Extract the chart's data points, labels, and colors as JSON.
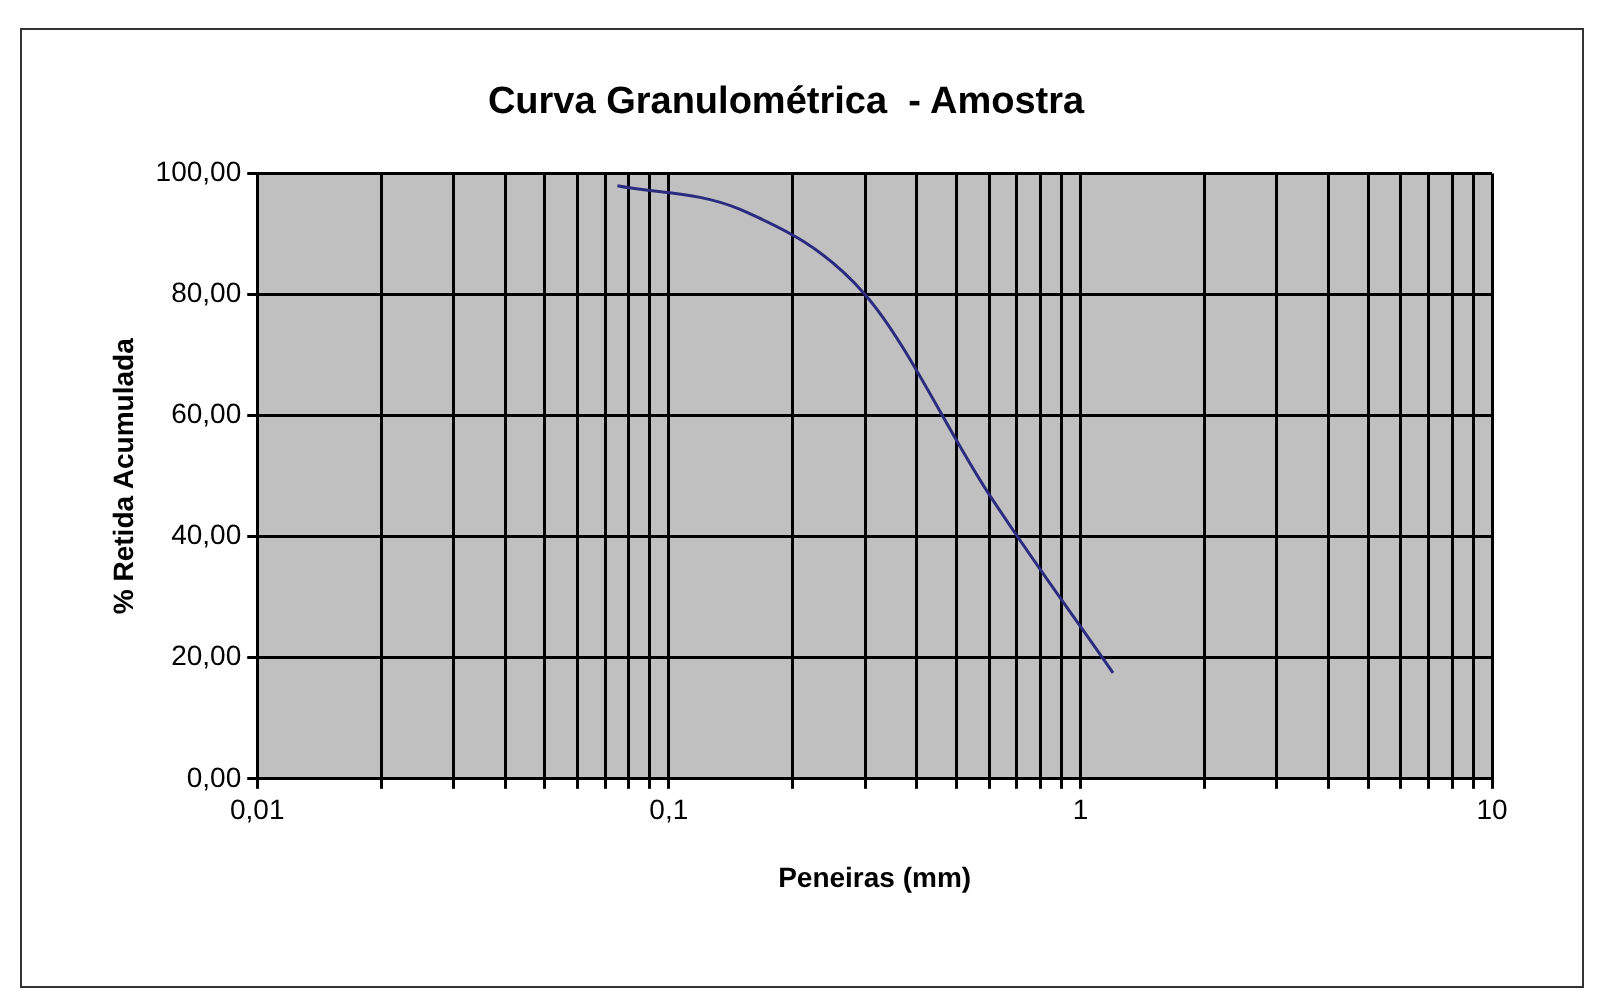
{
  "chart_data": {
    "type": "line",
    "title": "Curva Granulométrica  - Amostra",
    "xlabel": "Peneiras (mm)",
    "ylabel": "% Retida Acumulada",
    "log": "x",
    "grid": true,
    "legend": false,
    "marker": "none",
    "line_style": "solid",
    "x": [
      0.075,
      0.15,
      0.3,
      0.6,
      1.2
    ],
    "series": [
      {
        "color": "#2b2b80",
        "values": [
          98,
          94,
          80,
          47,
          17.5
        ]
      }
    ],
    "xlim": [
      0.01,
      10
    ],
    "xticks": [
      {
        "value": 0.01,
        "label": "0,01"
      },
      {
        "value": 0.02,
        "label": null
      },
      {
        "value": 0.03,
        "label": null
      },
      {
        "value": 0.04,
        "label": null
      },
      {
        "value": 0.05,
        "label": null
      },
      {
        "value": 0.06,
        "label": null
      },
      {
        "value": 0.07,
        "label": null
      },
      {
        "value": 0.08,
        "label": null
      },
      {
        "value": 0.09,
        "label": null
      },
      {
        "value": 0.1,
        "label": "0,1"
      },
      {
        "value": 0.2,
        "label": null
      },
      {
        "value": 0.3,
        "label": null
      },
      {
        "value": 0.4,
        "label": null
      },
      {
        "value": 0.5,
        "label": null
      },
      {
        "value": 0.6,
        "label": null
      },
      {
        "value": 0.7,
        "label": null
      },
      {
        "value": 0.8,
        "label": null
      },
      {
        "value": 0.9,
        "label": null
      },
      {
        "value": 1,
        "label": "1"
      },
      {
        "value": 2,
        "label": null
      },
      {
        "value": 3,
        "label": null
      },
      {
        "value": 4,
        "label": null
      },
      {
        "value": 5,
        "label": null
      },
      {
        "value": 6,
        "label": null
      },
      {
        "value": 7,
        "label": null
      },
      {
        "value": 8,
        "label": null
      },
      {
        "value": 9,
        "label": null
      },
      {
        "value": 10,
        "label": "10"
      }
    ],
    "ylim": [
      0,
      100
    ],
    "yticks": [
      {
        "value": 0,
        "label": "0,00"
      },
      {
        "value": 20,
        "label": "20,00"
      },
      {
        "value": 40,
        "label": "40,00"
      },
      {
        "value": 60,
        "label": "60,00"
      },
      {
        "value": 80,
        "label": "80,00"
      },
      {
        "value": 100,
        "label": "100,00"
      }
    ]
  }
}
